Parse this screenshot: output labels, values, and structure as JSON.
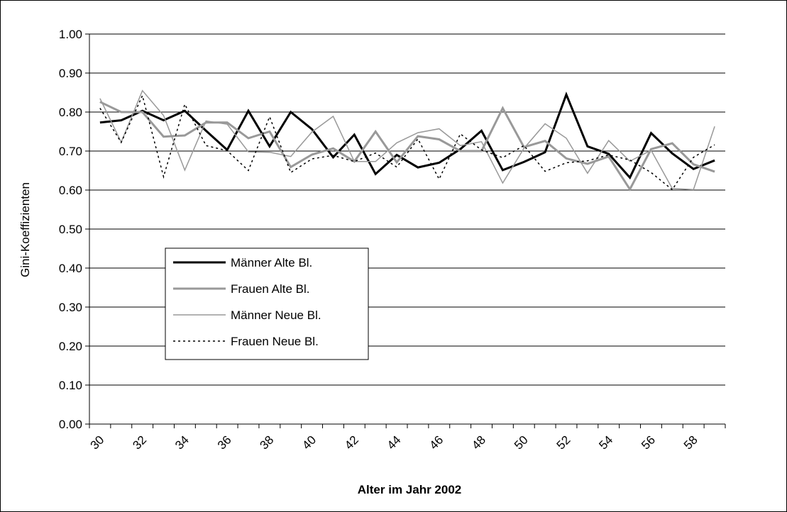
{
  "chart_data": {
    "type": "line",
    "title": "",
    "xlabel": "Alter im Jahr 2002",
    "ylabel": "Gini-Koeffizienten",
    "ylim": [
      0,
      1
    ],
    "yticks": [
      "0.00",
      "0.10",
      "0.20",
      "0.30",
      "0.40",
      "0.50",
      "0.60",
      "0.70",
      "0.80",
      "0.90",
      "1.00"
    ],
    "x": [
      30,
      31,
      32,
      33,
      34,
      35,
      36,
      37,
      38,
      39,
      40,
      41,
      42,
      43,
      44,
      45,
      46,
      47,
      48,
      49,
      50,
      51,
      52,
      53,
      54,
      55,
      56,
      57,
      58,
      59
    ],
    "xtick_labels": [
      "30",
      "32",
      "34",
      "36",
      "38",
      "40",
      "42",
      "44",
      "46",
      "48",
      "50",
      "52",
      "54",
      "56",
      "58"
    ],
    "grid": true,
    "legend_position": "center-left",
    "series": [
      {
        "name": "Männer Alte Bl.",
        "color": "#000000",
        "style": "solid-thick",
        "values": [
          0.773,
          0.779,
          0.803,
          0.779,
          0.803,
          0.752,
          0.703,
          0.803,
          0.712,
          0.8,
          0.756,
          0.684,
          0.742,
          0.641,
          0.69,
          0.658,
          0.67,
          0.705,
          0.752,
          0.651,
          0.672,
          0.697,
          0.845,
          0.712,
          0.693,
          0.632,
          0.746,
          0.694,
          0.654,
          0.676
        ]
      },
      {
        "name": "Frauen Alte Bl.",
        "color": "#999999",
        "style": "solid-thick",
        "values": [
          0.826,
          0.8,
          0.8,
          0.737,
          0.74,
          0.773,
          0.773,
          0.733,
          0.75,
          0.659,
          0.691,
          0.707,
          0.673,
          0.75,
          0.671,
          0.738,
          0.73,
          0.7,
          0.7,
          0.81,
          0.71,
          0.726,
          0.681,
          0.667,
          0.686,
          0.602,
          0.705,
          0.72,
          0.666,
          0.647
        ]
      },
      {
        "name": "Männer Neue Bl.",
        "color": "#999999",
        "style": "solid-thin",
        "values": [
          0.835,
          0.723,
          0.855,
          0.791,
          0.651,
          0.777,
          0.769,
          0.698,
          0.697,
          0.686,
          0.749,
          0.789,
          0.673,
          0.673,
          0.721,
          0.747,
          0.757,
          0.714,
          0.724,
          0.618,
          0.707,
          0.77,
          0.733,
          0.643,
          0.727,
          0.674,
          0.702,
          0.604,
          0.601,
          0.763
        ]
      },
      {
        "name": "Frauen Neue Bl.",
        "color": "#000000",
        "style": "dotted",
        "values": [
          0.81,
          0.722,
          0.842,
          0.634,
          0.82,
          0.714,
          0.701,
          0.65,
          0.788,
          0.645,
          0.68,
          0.689,
          0.673,
          0.695,
          0.659,
          0.731,
          0.628,
          0.744,
          0.703,
          0.683,
          0.714,
          0.648,
          0.67,
          0.675,
          0.69,
          0.677,
          0.645,
          0.601,
          0.684,
          0.716
        ]
      }
    ]
  }
}
